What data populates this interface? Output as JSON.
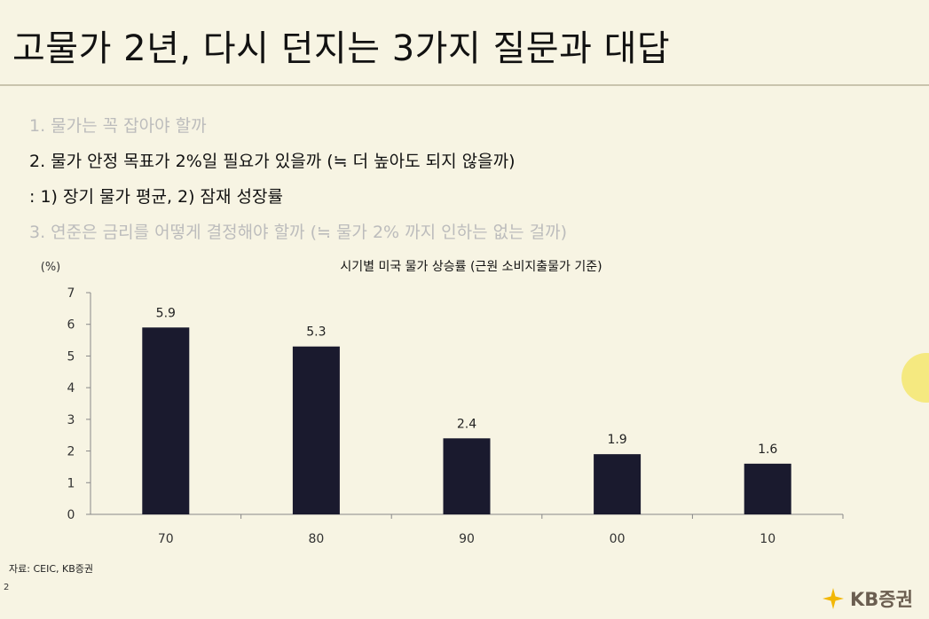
{
  "slide": {
    "title": "고물가 2년, 다시 던지는 3가지 질문과 대답",
    "bullets": [
      {
        "text": "1. 물가는 꼭 잡아야 할까",
        "state": "dim"
      },
      {
        "text": "2. 물가 안정 목표가 2%일 필요가 있을까 (≒ 더 높아도 되지 않을까)",
        "state": "active"
      },
      {
        "text": ": 1) 장기 물가 평균, 2) 잠재 성장률",
        "state": "active"
      },
      {
        "text": "3. 연준은 금리를 어떻게 결정해야 할까 (≒ 물가 2% 까지 인하는 없는 걸까)",
        "state": "dim"
      }
    ],
    "source": "자료: CEIC, KB증권",
    "page_number": "2",
    "logo_text": "KB증권"
  },
  "colors": {
    "background": "#f7f4e3",
    "bar": "#1a1a2e",
    "dim_text": "#bcbcbc",
    "logo_star": "#f2b705"
  },
  "chart_data": {
    "type": "bar",
    "title": "시기별 미국 물가 상승률 (근원 소비지출물가 기준)",
    "ylabel": "(%)",
    "xlabel": "",
    "categories": [
      "70",
      "80",
      "90",
      "00",
      "10"
    ],
    "values": [
      5.9,
      5.3,
      2.4,
      1.9,
      1.6
    ],
    "data_labels": [
      "5.9",
      "5.3",
      "2.4",
      "1.9",
      "1.6"
    ],
    "ylim": [
      0,
      7
    ],
    "yticks": [
      "0",
      "1",
      "2",
      "3",
      "4",
      "5",
      "6",
      "7"
    ],
    "grid": false,
    "legend": "none"
  }
}
